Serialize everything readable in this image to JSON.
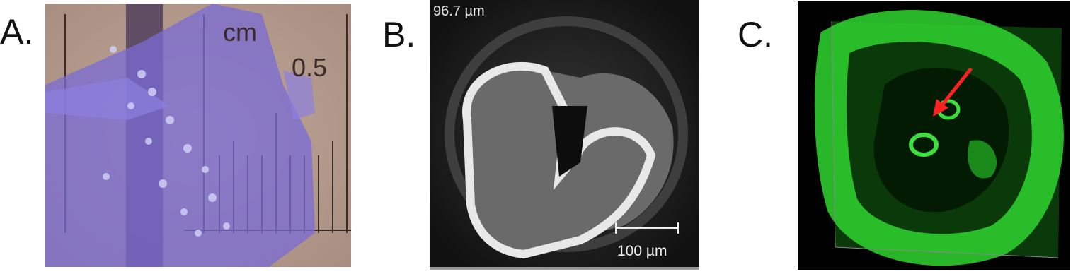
{
  "panels": [
    {
      "label": "A.",
      "annotations": [
        "cm",
        "0.5"
      ]
    },
    {
      "label": "B.",
      "annotations": [
        "96.7 µm",
        "100 µm"
      ]
    },
    {
      "label": "C."
    }
  ]
}
